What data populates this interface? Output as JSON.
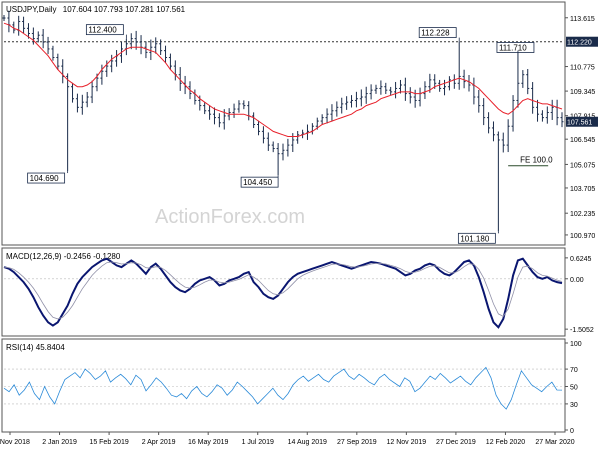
{
  "header": {
    "symbol": "USDJPY,Daily",
    "ohlc": "107.604 107.793 107.281 107.561"
  },
  "watermark": "ActionForex.com",
  "colors": {
    "bars": "#1a2b4a",
    "ma": "#e8202a",
    "macd": "#0a1670",
    "signal": "#9090a8",
    "rsi": "#2a8ad8",
    "axis_tag": "#1a2b4a",
    "annot_line": "#2a4a2a"
  },
  "chart_data": [
    {
      "type": "candlestick",
      "panel": "price",
      "x_tick_labels": [
        "15 Nov 2018",
        "2 Jan 2019",
        "15 Feb 2019",
        "2 Apr 2019",
        "16 May 2019",
        "1 Jul 2019",
        "14 Aug 2019",
        "27 Sep 2019",
        "12 Nov 2019",
        "27 Dec 2019",
        "12 Feb 2020",
        "27 Mar 2020"
      ],
      "y_tick_labels": [
        "113.615",
        "112.220",
        "110.775",
        "109.345",
        "107.915",
        "107.561",
        "106.545",
        "105.075",
        "103.705",
        "102.235",
        "100.970"
      ],
      "ylim": [
        100.5,
        114.3
      ],
      "close_series": [
        113.6,
        113.2,
        112.9,
        113.4,
        113.0,
        112.7,
        112.4,
        112.6,
        112.2,
        111.8,
        111.3,
        110.8,
        110.2,
        109.6,
        108.9,
        108.4,
        108.7,
        109.0,
        109.6,
        110.1,
        110.5,
        110.8,
        111.1,
        111.4,
        111.8,
        112.1,
        112.4,
        112.2,
        111.9,
        111.6,
        111.9,
        112.1,
        111.7,
        111.3,
        110.8,
        110.3,
        109.8,
        109.6,
        109.2,
        108.8,
        108.5,
        108.2,
        108.0,
        107.8,
        107.5,
        107.9,
        108.1,
        108.3,
        108.6,
        108.5,
        107.9,
        107.4,
        107.0,
        106.6,
        106.2,
        106.0,
        105.7,
        105.9,
        106.2,
        106.5,
        106.8,
        106.9,
        107.0,
        107.3,
        107.6,
        107.8,
        108.0,
        108.2,
        108.4,
        108.6,
        108.7,
        108.8,
        108.9,
        109.0,
        109.2,
        109.4,
        109.5,
        109.6,
        109.4,
        109.3,
        109.5,
        109.7,
        109.2,
        109.0,
        108.8,
        109.2,
        109.6,
        110.0,
        109.8,
        109.5,
        109.6,
        110.0,
        109.8,
        110.2,
        109.9,
        109.7,
        109.0,
        108.5,
        107.8,
        107.2,
        106.8,
        106.5,
        106.2,
        107.3,
        108.8,
        109.8,
        110.3,
        109.5,
        108.4,
        108.0,
        107.8,
        108.1,
        108.4,
        107.8,
        107.561
      ],
      "ma_series": [
        113.3,
        113.2,
        113.0,
        112.9,
        112.7,
        112.5,
        112.3,
        112.0,
        111.7,
        111.4,
        111.0,
        110.6,
        110.3,
        110.0,
        109.8,
        109.6,
        109.6,
        109.7,
        109.9,
        110.2,
        110.6,
        110.9,
        111.2,
        111.4,
        111.6,
        111.8,
        111.9,
        111.9,
        111.9,
        111.8,
        111.7,
        111.6,
        111.3,
        111.0,
        110.6,
        110.3,
        110.0,
        109.7,
        109.4,
        109.2,
        108.9,
        108.7,
        108.5,
        108.3,
        108.2,
        108.1,
        108.0,
        108.0,
        108.0,
        108.0,
        107.9,
        107.8,
        107.6,
        107.4,
        107.2,
        107.0,
        106.9,
        106.8,
        106.7,
        106.7,
        106.7,
        106.8,
        106.9,
        107.0,
        107.2,
        107.4,
        107.5,
        107.6,
        107.7,
        107.8,
        107.9,
        108.0,
        108.2,
        108.3,
        108.5,
        108.6,
        108.7,
        108.9,
        109.0,
        109.1,
        109.2,
        109.3,
        109.3,
        109.3,
        109.2,
        109.2,
        109.3,
        109.4,
        109.6,
        109.7,
        109.8,
        109.9,
        110.0,
        110.1,
        110.0,
        109.9,
        109.7,
        109.5,
        109.2,
        108.9,
        108.6,
        108.3,
        108.1,
        108.0,
        108.2,
        108.5,
        108.8,
        108.9,
        108.8,
        108.7,
        108.6,
        108.6,
        108.5,
        108.4,
        108.3
      ],
      "annotations": [
        {
          "label": "112.400",
          "value": 112.4
        },
        {
          "label": "104.690",
          "value": 104.69
        },
        {
          "label": "104.450",
          "value": 104.45
        },
        {
          "label": "112.228",
          "value": 112.228
        },
        {
          "label": "111.710",
          "value": 111.71
        },
        {
          "label": "101.180",
          "value": 101.18
        },
        {
          "label": "FE 100.0",
          "value": 105.0
        }
      ],
      "hline": {
        "label": "112.220",
        "value": 112.22
      },
      "last_price": {
        "label": "107.561",
        "value": 107.561
      }
    },
    {
      "type": "line",
      "panel": "macd",
      "title": "MACD(12,26,9) -0.2456 -0.1280",
      "y_tick_labels": [
        "0.6245",
        "0.00",
        "-1.5052"
      ],
      "ylim": [
        -1.65,
        0.8
      ],
      "series": [
        {
          "name": "MACD",
          "values": [
            0.35,
            0.3,
            0.2,
            0.05,
            -0.1,
            -0.3,
            -0.55,
            -0.85,
            -1.1,
            -1.3,
            -1.4,
            -1.3,
            -1.05,
            -0.8,
            -0.45,
            -0.15,
            0.05,
            0.2,
            0.35,
            0.45,
            0.55,
            0.6,
            0.5,
            0.4,
            0.35,
            0.45,
            0.55,
            0.45,
            0.3,
            0.15,
            0.35,
            0.45,
            0.3,
            0.1,
            -0.1,
            -0.25,
            -0.35,
            -0.4,
            -0.3,
            -0.15,
            -0.05,
            0.0,
            0.05,
            -0.05,
            -0.2,
            -0.15,
            -0.05,
            0.0,
            0.05,
            0.15,
            0.2,
            -0.1,
            -0.25,
            -0.45,
            -0.55,
            -0.6,
            -0.5,
            -0.3,
            -0.1,
            0.05,
            0.15,
            0.2,
            0.25,
            0.3,
            0.35,
            0.4,
            0.45,
            0.5,
            0.45,
            0.4,
            0.35,
            0.3,
            0.35,
            0.4,
            0.45,
            0.5,
            0.48,
            0.45,
            0.4,
            0.35,
            0.3,
            0.2,
            0.1,
            0.15,
            0.25,
            0.3,
            0.4,
            0.45,
            0.4,
            0.25,
            0.15,
            0.1,
            0.2,
            0.35,
            0.5,
            0.55,
            0.4,
            0.05,
            -0.4,
            -0.9,
            -1.3,
            -1.45,
            -1.2,
            -0.6,
            0.1,
            0.55,
            0.6,
            0.4,
            0.2,
            0.05,
            0.0,
            0.05,
            -0.05,
            -0.1,
            -0.13
          ]
        },
        {
          "name": "Signal",
          "values": [
            0.35,
            0.33,
            0.28,
            0.18,
            0.05,
            -0.1,
            -0.28,
            -0.5,
            -0.75,
            -0.98,
            -1.15,
            -1.2,
            -1.15,
            -1.0,
            -0.8,
            -0.55,
            -0.3,
            -0.1,
            0.1,
            0.25,
            0.38,
            0.48,
            0.5,
            0.48,
            0.44,
            0.45,
            0.48,
            0.47,
            0.42,
            0.33,
            0.32,
            0.36,
            0.34,
            0.25,
            0.12,
            -0.02,
            -0.15,
            -0.25,
            -0.28,
            -0.25,
            -0.18,
            -0.1,
            -0.04,
            -0.04,
            -0.1,
            -0.12,
            -0.1,
            -0.06,
            -0.02,
            0.05,
            0.12,
            0.05,
            -0.05,
            -0.2,
            -0.35,
            -0.45,
            -0.48,
            -0.42,
            -0.3,
            -0.15,
            0.0,
            0.1,
            0.17,
            0.23,
            0.28,
            0.33,
            0.38,
            0.43,
            0.44,
            0.43,
            0.4,
            0.36,
            0.35,
            0.37,
            0.4,
            0.44,
            0.46,
            0.46,
            0.44,
            0.4,
            0.36,
            0.3,
            0.22,
            0.18,
            0.2,
            0.24,
            0.31,
            0.37,
            0.39,
            0.34,
            0.26,
            0.18,
            0.18,
            0.25,
            0.36,
            0.45,
            0.43,
            0.28,
            0.02,
            -0.35,
            -0.75,
            -1.05,
            -1.12,
            -0.9,
            -0.45,
            0.05,
            0.35,
            0.38,
            0.3,
            0.18,
            0.1,
            0.08,
            0.02,
            -0.04,
            -0.08
          ]
        }
      ]
    },
    {
      "type": "line",
      "panel": "rsi",
      "title": "RSI(14) 45.8404",
      "y_tick_labels": [
        "100",
        "70",
        "50",
        "30",
        "0"
      ],
      "ylim": [
        0,
        100
      ],
      "series": [
        {
          "name": "RSI",
          "values": [
            48,
            44,
            52,
            40,
            46,
            55,
            42,
            35,
            50,
            38,
            30,
            45,
            58,
            62,
            66,
            60,
            70,
            65,
            58,
            62,
            68,
            55,
            60,
            64,
            59,
            52,
            63,
            58,
            45,
            52,
            60,
            55,
            48,
            40,
            38,
            42,
            36,
            45,
            50,
            42,
            38,
            44,
            52,
            48,
            40,
            46,
            55,
            50,
            44,
            38,
            30,
            36,
            42,
            48,
            40,
            35,
            42,
            52,
            58,
            62,
            56,
            60,
            64,
            58,
            55,
            62,
            66,
            70,
            62,
            58,
            64,
            60,
            55,
            52,
            60,
            64,
            58,
            54,
            50,
            60,
            56,
            44,
            48,
            55,
            62,
            58,
            65,
            60,
            54,
            58,
            62,
            56,
            52,
            60,
            66,
            72,
            60,
            40,
            30,
            24,
            35,
            52,
            68,
            60,
            52,
            48,
            44,
            50,
            55,
            46,
            45.84
          ]
        }
      ]
    }
  ]
}
